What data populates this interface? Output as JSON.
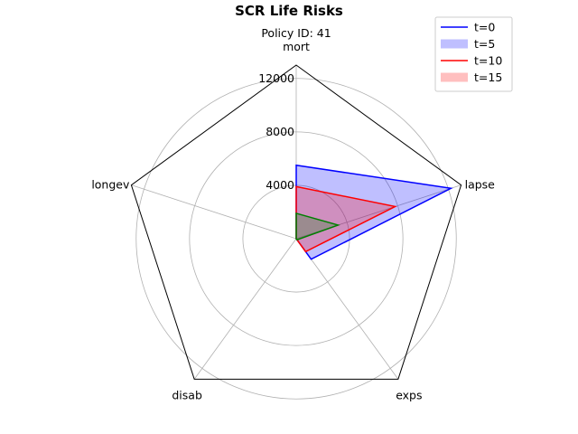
{
  "chart_data": {
    "type": "radar",
    "title": "SCR Life Risks",
    "subtitle": "Policy ID: 41",
    "axes": [
      "mort",
      "lapse",
      "exps",
      "disab",
      "longev"
    ],
    "radial_ticks": [
      4000,
      8000,
      12000
    ],
    "rmax": 13000,
    "series": [
      {
        "name": "t=0",
        "values": [
          5500,
          12200,
          1900,
          0,
          0
        ],
        "style": "line",
        "color": "#0000ff"
      },
      {
        "name": "t=5",
        "values": [
          5500,
          12200,
          1900,
          0,
          0
        ],
        "style": "fill",
        "color": "#0000ff"
      },
      {
        "name": "t=10",
        "values": [
          3900,
          7800,
          1200,
          0,
          0
        ],
        "style": "line",
        "color": "#ff0000"
      },
      {
        "name": "t=15",
        "values": [
          3900,
          7800,
          1200,
          0,
          0
        ],
        "style": "fill",
        "color": "#ff0000"
      },
      {
        "values": [
          1900,
          3300,
          100,
          0,
          0
        ],
        "style": "line-fill",
        "color": "#008000"
      }
    ],
    "grid": true,
    "legend_position": "top-right"
  }
}
